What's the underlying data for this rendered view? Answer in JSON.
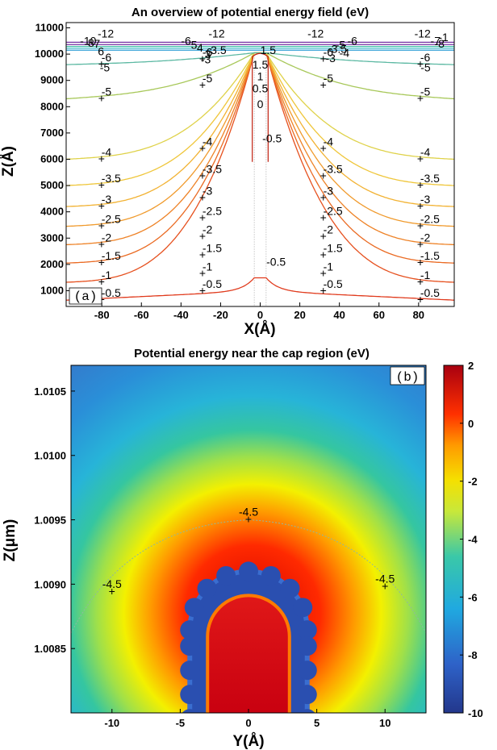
{
  "chart_data": [
    {
      "type": "contour",
      "panel": "(a)",
      "title": "An overview of potential energy field (eV)",
      "xlabel": "X(Å)",
      "ylabel": "Z(Å)",
      "xlim": [
        -98,
        98
      ],
      "ylim": [
        400,
        11200
      ],
      "xticks": [
        -80,
        -60,
        -40,
        -20,
        0,
        20,
        40,
        60,
        80
      ],
      "yticks": [
        1000,
        2000,
        3000,
        4000,
        5000,
        6000,
        7000,
        8000,
        9000,
        10000,
        11000
      ],
      "contours": [
        {
          "level": -0.5,
          "z_far": 640,
          "z_mid": 980,
          "z_center": 1820,
          "label": "-0.5",
          "color": "#e03a1c"
        },
        {
          "level": -1,
          "z_far": 1320,
          "z_mid": 1650,
          "label": "-1",
          "color": "#e6501e"
        },
        {
          "level": -1.5,
          "z_far": 2050,
          "z_mid": 2350,
          "label": "-1.5",
          "color": "#ea6a22"
        },
        {
          "level": -2,
          "z_far": 2750,
          "z_mid": 3060,
          "label": "-2",
          "color": "#ee8226"
        },
        {
          "level": -2.5,
          "z_far": 3450,
          "z_mid": 3760,
          "label": "-2.5",
          "color": "#f09a2c"
        },
        {
          "level": -3,
          "z_far": 4200,
          "z_mid": 4520,
          "label": "-3",
          "color": "#f2b232"
        },
        {
          "level": -3.5,
          "z_far": 5000,
          "z_mid": 5350,
          "label": "-3.5",
          "color": "#efc63a"
        },
        {
          "level": -4,
          "z_far": 6000,
          "z_mid": 6400,
          "label": "-4",
          "color": "#dfd24a"
        },
        {
          "level": -5,
          "z_far": 8300,
          "z_mid": 8800,
          "label": "-5",
          "color": "#a8c85a"
        },
        {
          "level": -6,
          "z_far": 9600,
          "z_mid": 9800,
          "label": "-6",
          "color": "#5bb8a2"
        },
        {
          "level": -12,
          "z_far": 10450,
          "z_mid": 10450,
          "label": "-12",
          "color": "#7a3aa8"
        }
      ],
      "inner_labels": [
        "1.5",
        "1.5",
        "1",
        "0.5",
        "0",
        "-0.5",
        "-0.5"
      ],
      "top_labels": [
        "-10",
        "8",
        "7",
        "6",
        "-6",
        "5",
        "4",
        "3",
        "3.5",
        "-12",
        "-12",
        "-12",
        "-12",
        "-3",
        "-3.5",
        "-5",
        "-4",
        "-6",
        "-7",
        "-8",
        "-1",
        "-5"
      ],
      "side_labels": [
        "-5",
        "-3"
      ]
    },
    {
      "type": "heatmap",
      "panel": "(b)",
      "title": "Potential energy near the cap region (eV)",
      "xlabel": "Y(Å)",
      "ylabel": "Z(μm)",
      "xlim": [
        -13,
        13
      ],
      "ylim": [
        1.008,
        1.0107
      ],
      "xticks": [
        -10,
        -5,
        0,
        5,
        10
      ],
      "yticks": [
        1.0085,
        1.009,
        1.0095,
        1.01,
        1.0105
      ],
      "ytick_labels": [
        "1.0085",
        "1.0090",
        "1.0095",
        "1.0100",
        "1.0105"
      ],
      "colorbar": {
        "min": -10,
        "max": 2,
        "ticks": [
          -10,
          -8,
          -6,
          -4,
          -2,
          0,
          2
        ]
      },
      "cap": {
        "radius": 4.3,
        "top_z": 1.0091,
        "shell_value": -9,
        "inner_value": 1.5
      },
      "contour_level": -4.5,
      "contour_labels": [
        {
          "text": "-4.5",
          "y": 0,
          "z": 1.0095
        },
        {
          "text": "-4.5",
          "y": -10,
          "z": 1.00894
        },
        {
          "text": "-4.5",
          "y": 10,
          "z": 1.00898
        }
      ]
    }
  ]
}
